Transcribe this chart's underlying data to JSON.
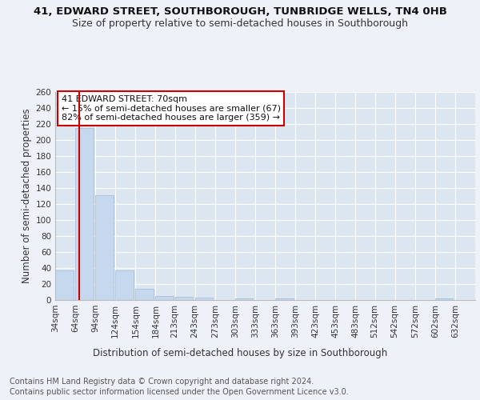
{
  "title1": "41, EDWARD STREET, SOUTHBOROUGH, TUNBRIDGE WELLS, TN4 0HB",
  "title2": "Size of property relative to semi-detached houses in Southborough",
  "xlabel": "Distribution of semi-detached houses by size in Southborough",
  "ylabel": "Number of semi-detached properties",
  "footer1": "Contains HM Land Registry data © Crown copyright and database right 2024.",
  "footer2": "Contains public sector information licensed under the Open Government Licence v3.0.",
  "annotation_line1": "41 EDWARD STREET: 70sqm",
  "annotation_line2": "← 15% of semi-detached houses are smaller (67)",
  "annotation_line3": "82% of semi-detached houses are larger (359) →",
  "property_size": 70,
  "bin_starts": [
    34,
    64,
    94,
    124,
    154,
    184,
    213,
    243,
    273,
    303,
    333,
    363,
    393,
    423,
    453,
    483,
    512,
    542,
    572,
    602,
    632
  ],
  "bin_labels": [
    "34sqm",
    "64sqm",
    "94sqm",
    "124sqm",
    "154sqm",
    "184sqm",
    "213sqm",
    "243sqm",
    "273sqm",
    "303sqm",
    "333sqm",
    "363sqm",
    "393sqm",
    "423sqm",
    "453sqm",
    "483sqm",
    "512sqm",
    "542sqm",
    "572sqm",
    "602sqm",
    "632sqm"
  ],
  "values": [
    37,
    215,
    131,
    37,
    14,
    5,
    4,
    3,
    0,
    2,
    0,
    2,
    0,
    0,
    0,
    0,
    0,
    0,
    0,
    2,
    0
  ],
  "bar_color": "#c5d8ed",
  "bar_edge_color": "#a0b8d8",
  "vline_color": "#cc0000",
  "ylim": [
    0,
    260
  ],
  "yticks": [
    0,
    20,
    40,
    60,
    80,
    100,
    120,
    140,
    160,
    180,
    200,
    220,
    240,
    260
  ],
  "bg_color": "#eef2f8",
  "plot_bg_color": "#dce6f0",
  "grid_color": "#ffffff",
  "annotation_box_color": "#ffffff",
  "annotation_box_edge": "#cc0000",
  "title1_fontsize": 9.5,
  "title2_fontsize": 9,
  "annotation_fontsize": 8,
  "axis_label_fontsize": 8.5,
  "tick_fontsize": 7.5,
  "footer_fontsize": 7
}
